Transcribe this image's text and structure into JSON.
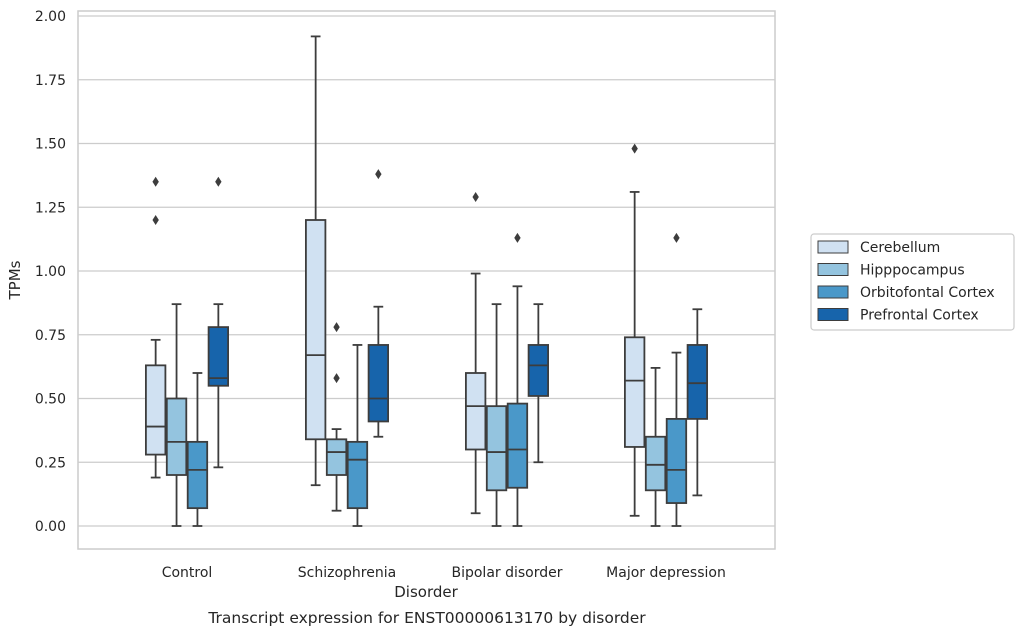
{
  "chart_data": {
    "type": "box",
    "caption": "Transcript expression for ENST00000613170 by disorder",
    "xlabel": "Disorder",
    "ylabel": "TPMs",
    "ylim": [
      -0.09,
      2.02
    ],
    "yticks": [
      "0.00",
      "0.25",
      "0.50",
      "0.75",
      "1.00",
      "1.25",
      "1.50",
      "1.75",
      "2.00"
    ],
    "grid": "horizontal",
    "legend_placement": "right",
    "categories": [
      "Control",
      "Schizophrenia",
      "Bipolar disorder",
      "Major depression"
    ],
    "series": [
      {
        "name": "Cerebellum",
        "color": "#d0e1f2",
        "boxes": [
          {
            "whislo": 0.19,
            "q1": 0.28,
            "med": 0.39,
            "q3": 0.63,
            "whishi": 0.73,
            "fliers": [
              1.2,
              1.35
            ]
          },
          {
            "whislo": 0.16,
            "q1": 0.34,
            "med": 0.67,
            "q3": 1.2,
            "whishi": 1.92,
            "fliers": []
          },
          {
            "whislo": 0.05,
            "q1": 0.3,
            "med": 0.47,
            "q3": 0.6,
            "whishi": 0.99,
            "fliers": [
              1.29
            ]
          },
          {
            "whislo": 0.04,
            "q1": 0.31,
            "med": 0.57,
            "q3": 0.74,
            "whishi": 1.31,
            "fliers": [
              1.48
            ]
          }
        ]
      },
      {
        "name": "Hipppocampus",
        "color": "#94c4df",
        "boxes": [
          {
            "whislo": 0.0,
            "q1": 0.2,
            "med": 0.33,
            "q3": 0.5,
            "whishi": 0.87,
            "fliers": []
          },
          {
            "whislo": 0.06,
            "q1": 0.2,
            "med": 0.29,
            "q3": 0.34,
            "whishi": 0.38,
            "fliers": [
              0.58,
              0.78
            ]
          },
          {
            "whislo": 0.0,
            "q1": 0.14,
            "med": 0.29,
            "q3": 0.47,
            "whishi": 0.87,
            "fliers": []
          },
          {
            "whislo": 0.0,
            "q1": 0.14,
            "med": 0.24,
            "q3": 0.35,
            "whishi": 0.62,
            "fliers": []
          }
        ]
      },
      {
        "name": "Orbitofontal Cortex",
        "color": "#4a98c9",
        "boxes": [
          {
            "whislo": 0.0,
            "q1": 0.07,
            "med": 0.22,
            "q3": 0.33,
            "whishi": 0.6,
            "fliers": []
          },
          {
            "whislo": 0.0,
            "q1": 0.07,
            "med": 0.26,
            "q3": 0.33,
            "whishi": 0.71,
            "fliers": []
          },
          {
            "whislo": 0.0,
            "q1": 0.15,
            "med": 0.3,
            "q3": 0.48,
            "whishi": 0.94,
            "fliers": [
              1.13
            ]
          },
          {
            "whislo": 0.0,
            "q1": 0.09,
            "med": 0.22,
            "q3": 0.42,
            "whishi": 0.68,
            "fliers": [
              1.13
            ]
          }
        ]
      },
      {
        "name": "Prefrontal Cortex",
        "color": "#1764ab",
        "boxes": [
          {
            "whislo": 0.23,
            "q1": 0.55,
            "med": 0.58,
            "q3": 0.78,
            "whishi": 0.87,
            "fliers": [
              1.35
            ]
          },
          {
            "whislo": 0.35,
            "q1": 0.41,
            "med": 0.5,
            "q3": 0.71,
            "whishi": 0.86,
            "fliers": [
              1.38
            ]
          },
          {
            "whislo": 0.25,
            "q1": 0.51,
            "med": 0.63,
            "q3": 0.71,
            "whishi": 0.87,
            "fliers": []
          },
          {
            "whislo": 0.12,
            "q1": 0.42,
            "med": 0.56,
            "q3": 0.71,
            "whishi": 0.85,
            "fliers": []
          }
        ]
      }
    ]
  }
}
